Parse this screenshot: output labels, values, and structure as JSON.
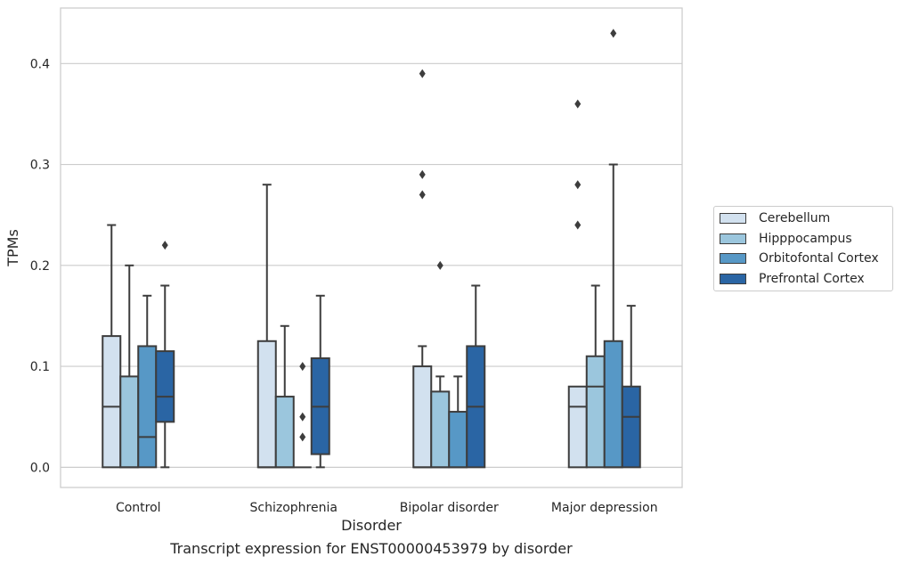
{
  "chart_data": {
    "type": "boxplot",
    "title": "",
    "caption": "Transcript expression for ENST00000453979 by disorder",
    "xlabel": "Disorder",
    "ylabel": "TPMs",
    "ylim": [
      -0.02,
      0.455
    ],
    "yticks": [
      0.0,
      0.1,
      0.2,
      0.3,
      0.4
    ],
    "ytick_labels": [
      "0.0",
      "0.1",
      "0.2",
      "0.3",
      "0.4"
    ],
    "grid": "horizontal",
    "legend_placement": "outside-right",
    "categories": [
      "Control",
      "Schizophrenia",
      "Bipolar disorder",
      "Major depression"
    ],
    "series": [
      {
        "name": "Cerebellum",
        "color": "#d2e1ef",
        "boxes": [
          {
            "whislo": 0.0,
            "q1": 0.0,
            "med": 0.06,
            "q3": 0.13,
            "whishi": 0.24,
            "fliers": []
          },
          {
            "whislo": 0.0,
            "q1": 0.0,
            "med": 0.0,
            "q3": 0.125,
            "whishi": 0.28,
            "fliers": []
          },
          {
            "whislo": 0.0,
            "q1": 0.0,
            "med": 0.0,
            "q3": 0.1,
            "whishi": 0.12,
            "fliers": [
              0.27,
              0.29,
              0.39
            ]
          },
          {
            "whislo": 0.0,
            "q1": 0.0,
            "med": 0.06,
            "q3": 0.08,
            "whishi": 0.08,
            "fliers": [
              0.24,
              0.28,
              0.36
            ]
          }
        ]
      },
      {
        "name": "Hipppocampus",
        "color": "#9bc6dd",
        "boxes": [
          {
            "whislo": 0.0,
            "q1": 0.0,
            "med": 0.0,
            "q3": 0.09,
            "whishi": 0.2,
            "fliers": []
          },
          {
            "whislo": 0.0,
            "q1": 0.0,
            "med": 0.0,
            "q3": 0.07,
            "whishi": 0.14,
            "fliers": []
          },
          {
            "whislo": 0.0,
            "q1": 0.0,
            "med": 0.0,
            "q3": 0.075,
            "whishi": 0.09,
            "fliers": [
              0.2
            ]
          },
          {
            "whislo": 0.0,
            "q1": 0.0,
            "med": 0.08,
            "q3": 0.11,
            "whishi": 0.18,
            "fliers": []
          }
        ]
      },
      {
        "name": "Orbitofontal Cortex",
        "color": "#5798c6",
        "boxes": [
          {
            "whislo": 0.0,
            "q1": 0.0,
            "med": 0.03,
            "q3": 0.12,
            "whishi": 0.17,
            "fliers": []
          },
          {
            "whislo": 0.0,
            "q1": 0.0,
            "med": 0.0,
            "q3": 0.0,
            "whishi": 0.0,
            "fliers": [
              0.03,
              0.05,
              0.1
            ]
          },
          {
            "whislo": 0.0,
            "q1": 0.0,
            "med": 0.0,
            "q3": 0.055,
            "whishi": 0.09,
            "fliers": []
          },
          {
            "whislo": 0.0,
            "q1": 0.0,
            "med": 0.0,
            "q3": 0.125,
            "whishi": 0.3,
            "fliers": [
              0.43
            ]
          }
        ]
      },
      {
        "name": "Prefrontal Cortex",
        "color": "#2a65a4",
        "boxes": [
          {
            "whislo": 0.0,
            "q1": 0.045,
            "med": 0.07,
            "q3": 0.115,
            "whishi": 0.18,
            "fliers": [
              0.22
            ]
          },
          {
            "whislo": 0.0,
            "q1": 0.013,
            "med": 0.06,
            "q3": 0.108,
            "whishi": 0.17,
            "fliers": []
          },
          {
            "whislo": 0.0,
            "q1": 0.0,
            "med": 0.06,
            "q3": 0.12,
            "whishi": 0.18,
            "fliers": []
          },
          {
            "whislo": 0.0,
            "q1": 0.0,
            "med": 0.05,
            "q3": 0.08,
            "whishi": 0.16,
            "fliers": []
          }
        ]
      }
    ]
  }
}
